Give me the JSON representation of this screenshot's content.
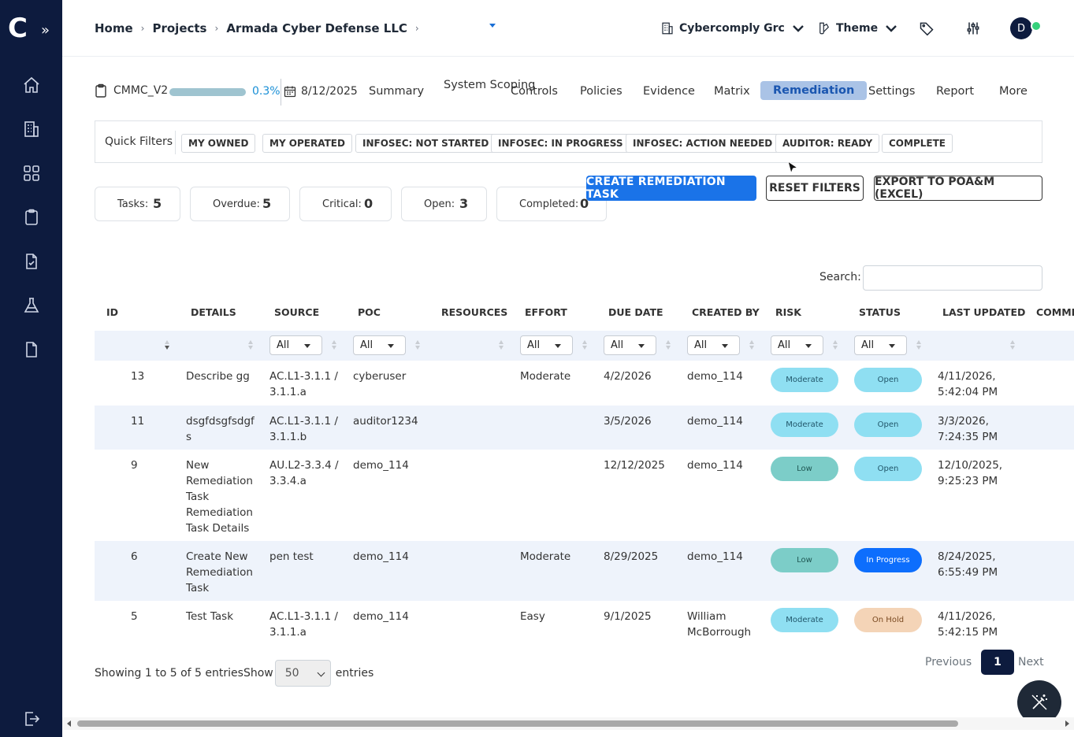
{
  "sidebar": {
    "logo": "C",
    "expand": "»",
    "icons": [
      "home-icon",
      "building-icon",
      "apps-grid-icon",
      "clipboard-icon",
      "file-check-icon",
      "flask-icon",
      "document-icon",
      "logout-icon"
    ]
  },
  "header": {
    "breadcrumb": [
      "Home",
      "Projects",
      "Armada Cyber Defense LLC"
    ],
    "org": "Cybercomply Grc",
    "theme": "Theme",
    "avatar": "D"
  },
  "project": {
    "name": "CMMC_V2",
    "progress_pct": 0.3,
    "progress_label": "0.3%",
    "date": "8/12/2025",
    "tabs": [
      {
        "label": "Summary"
      },
      {
        "label": "System Scoping"
      },
      {
        "label": "Controls"
      },
      {
        "label": "Policies"
      },
      {
        "label": "Evidence"
      },
      {
        "label": "Matrix"
      },
      {
        "label": "Remediation",
        "active": true
      },
      {
        "label": "Settings"
      },
      {
        "label": "Report"
      },
      {
        "label": "More"
      }
    ]
  },
  "quick_filters": {
    "label": "Quick Filters",
    "buttons": [
      "MY OWNED",
      "MY OPERATED",
      "INFOSEC: NOT STARTED",
      "INFOSEC: IN PROGRESS",
      "INFOSEC: ACTION NEEDED",
      "AUDITOR: READY",
      "COMPLETE"
    ]
  },
  "stats": [
    {
      "label": "Tasks:",
      "value": "5"
    },
    {
      "label": "Overdue:",
      "value": "5"
    },
    {
      "label": "Critical:",
      "value": "0"
    },
    {
      "label": "Open:",
      "value": "3"
    },
    {
      "label": "Completed:",
      "value": "0"
    }
  ],
  "actions": {
    "create": "CREATE REMEDIATION TASK",
    "reset": "RESET FILTERS",
    "export": "EXPORT TO POA&M (EXCEL)"
  },
  "search": {
    "label": "Search:",
    "value": ""
  },
  "table": {
    "columns": [
      "ID",
      "DETAILS",
      "SOURCE",
      "POC",
      "RESOURCES",
      "EFFORT",
      "DUE DATE",
      "CREATED BY",
      "RISK",
      "STATUS",
      "LAST UPDATED",
      "COMMENTS"
    ],
    "filter_all": "All",
    "rows": [
      {
        "id": "13",
        "details": "Describe gg",
        "source": "AC.L1-3.1.1 / 3.1.1.a",
        "poc": "cyberuser",
        "resources": "",
        "effort": "Moderate",
        "due": "4/2/2026",
        "created_by": "demo_114",
        "risk": "Moderate",
        "status": "Open",
        "updated": "4/11/2026, 5:42:04 PM"
      },
      {
        "id": "11",
        "details": "dsgfdsgfsdgfs",
        "source": "AC.L1-3.1.1 / 3.1.1.b",
        "poc": "auditor1234",
        "resources": "",
        "effort": "",
        "due": "3/5/2026",
        "created_by": "demo_114",
        "risk": "Moderate",
        "status": "Open",
        "updated": "3/3/2026, 7:24:35 PM"
      },
      {
        "id": "9",
        "details": "New Remediation Task Remediation Task Details",
        "source": "AU.L2-3.3.4 / 3.3.4.a",
        "poc": "demo_114",
        "resources": "",
        "effort": "",
        "due": "12/12/2025",
        "created_by": "demo_114",
        "risk": "Low",
        "status": "Open",
        "updated": "12/10/2025, 9:25:23 PM"
      },
      {
        "id": "6",
        "details": "Create New Remediation Task",
        "source": "pen test",
        "poc": "demo_114",
        "resources": "",
        "effort": "Moderate",
        "due": "8/29/2025",
        "created_by": "demo_114",
        "risk": "Low",
        "status": "In Progress",
        "updated": "8/24/2025, 6:55:49 PM"
      },
      {
        "id": "5",
        "details": "Test Task",
        "source": "AC.L1-3.1.1 / 3.1.1.a",
        "poc": "demo_114",
        "resources": "",
        "effort": "Easy",
        "due": "9/1/2025",
        "created_by": "William McBorrough",
        "risk": "Moderate",
        "status": "On Hold",
        "updated": "4/11/2026, 5:42:15 PM"
      }
    ]
  },
  "footer": {
    "showing": "Showing 1 to 5 of 5 entries",
    "show": "Show",
    "page_size": "50",
    "entries": "entries",
    "previous": "Previous",
    "page": "1",
    "next": "Next"
  },
  "colors": {
    "sidebar": "#0d1b3e",
    "primary": "#1a73e8",
    "risk_moderate": "#8fdff2",
    "risk_low": "#7ccdc8",
    "status_open": "#8fdff2",
    "status_in_progress": "#0d6efd",
    "status_on_hold": "#f4d4b7"
  }
}
